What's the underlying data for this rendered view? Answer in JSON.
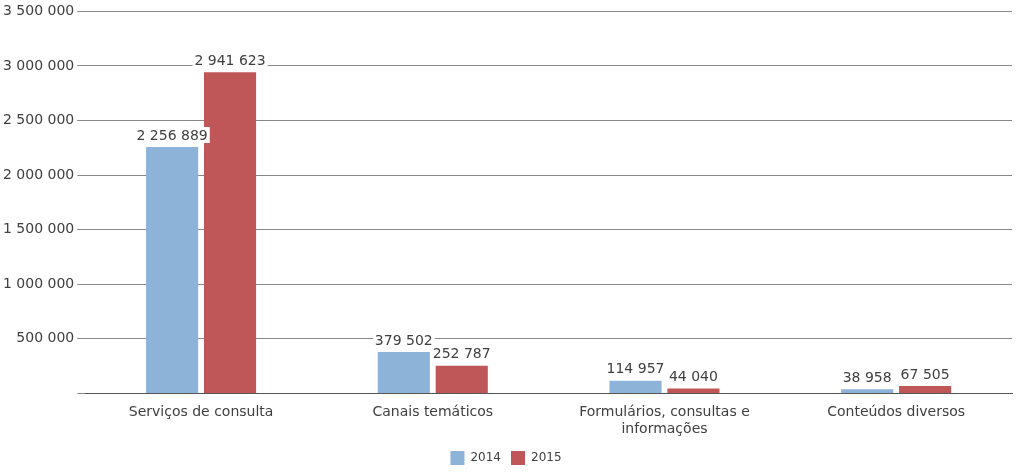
{
  "chart_data": {
    "type": "bar",
    "categories": [
      "Serviços de consulta",
      "Canais temáticos",
      "Formulários, consultas e informações",
      "Conteúdos diversos"
    ],
    "series": [
      {
        "name": "2014",
        "color": "#8eb3d8",
        "values": [
          2256889,
          379502,
          114957,
          38958
        ],
        "value_labels": [
          "2 256 889",
          "379 502",
          "114 957",
          "38 958"
        ]
      },
      {
        "name": "2015",
        "color": "#bf5658",
        "values": [
          2941623,
          252787,
          44040,
          67505
        ],
        "value_labels": [
          "2 941 623",
          "252 787",
          "44 040",
          "67 505"
        ]
      }
    ],
    "ylim": [
      0,
      3500000
    ],
    "yticks": [
      {
        "value": 0,
        "label": null
      },
      {
        "value": 500000,
        "label": "500 000"
      },
      {
        "value": 1000000,
        "label": "1 000 000"
      },
      {
        "value": 1500000,
        "label": "1 500 000"
      },
      {
        "value": 2000000,
        "label": "2 000 000"
      },
      {
        "value": 2500000,
        "label": "2 500 000"
      },
      {
        "value": 3000000,
        "label": "3 000 000"
      },
      {
        "value": 3500000,
        "label": "3 500 000"
      }
    ],
    "grid": "y",
    "legend": "bottom"
  }
}
